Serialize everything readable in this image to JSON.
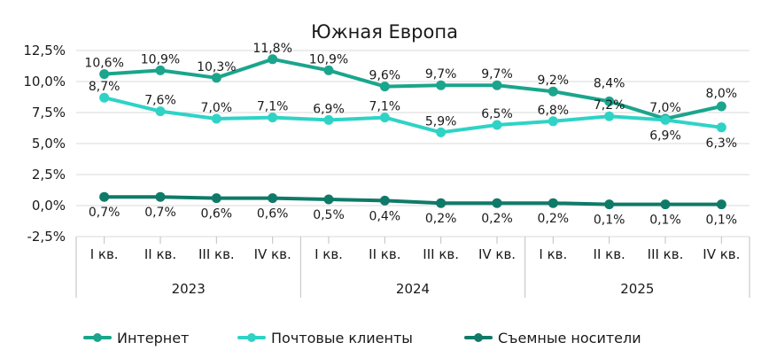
{
  "chart_data": {
    "type": "line",
    "title": "Южная Европа",
    "categories": [
      "I кв.",
      "II кв.",
      "III кв.",
      "IV кв.",
      "I кв.",
      "II кв.",
      "III кв.",
      "IV кв.",
      "I кв.",
      "II кв.",
      "III кв.",
      "IV кв."
    ],
    "groups": [
      {
        "label": "2023",
        "start": 0,
        "end": 3
      },
      {
        "label": "2024",
        "start": 4,
        "end": 7
      },
      {
        "label": "2025",
        "start": 8,
        "end": 11
      }
    ],
    "yticks": [
      -2.5,
      0,
      2.5,
      5,
      7.5,
      10,
      12.5
    ],
    "ytick_labels": [
      "-2,5%",
      "0,0%",
      "2,5%",
      "5,0%",
      "7,5%",
      "10,0%",
      "12,5%"
    ],
    "ylim": [
      -2.5,
      12.5
    ],
    "grid": true,
    "legend_position": "bottom",
    "series": [
      {
        "name": "Интернет",
        "color": "#1aa58c",
        "values": [
          10.6,
          10.9,
          10.3,
          11.8,
          10.9,
          9.6,
          9.7,
          9.7,
          9.2,
          8.4,
          7.0,
          8.0
        ],
        "labels": [
          "10,6%",
          "10,9%",
          "10,3%",
          "11,8%",
          "10,9%",
          "9,6%",
          "9,7%",
          "9,7%",
          "9,2%",
          "8,4%",
          "7,0%",
          "8,0%"
        ]
      },
      {
        "name": "Почтовые клиенты",
        "color": "#2ed3c6",
        "values": [
          8.7,
          7.6,
          7.0,
          7.1,
          6.9,
          7.1,
          5.9,
          6.5,
          6.8,
          7.2,
          6.9,
          6.3
        ],
        "labels": [
          "8,7%",
          "7,6%",
          "7,0%",
          "7,1%",
          "6,9%",
          "7,1%",
          "5,9%",
          "6,5%",
          "6,8%",
          "7,2%",
          "6,9%",
          "6,3%"
        ]
      },
      {
        "name": "Съемные носители",
        "color": "#0f7a68",
        "values": [
          0.7,
          0.7,
          0.6,
          0.6,
          0.5,
          0.4,
          0.2,
          0.2,
          0.2,
          0.1,
          0.1,
          0.1
        ],
        "labels": [
          "0,7%",
          "0,7%",
          "0,6%",
          "0,6%",
          "0,5%",
          "0,4%",
          "0,2%",
          "0,2%",
          "0,2%",
          "0,1%",
          "0,1%",
          "0,1%"
        ]
      }
    ]
  }
}
